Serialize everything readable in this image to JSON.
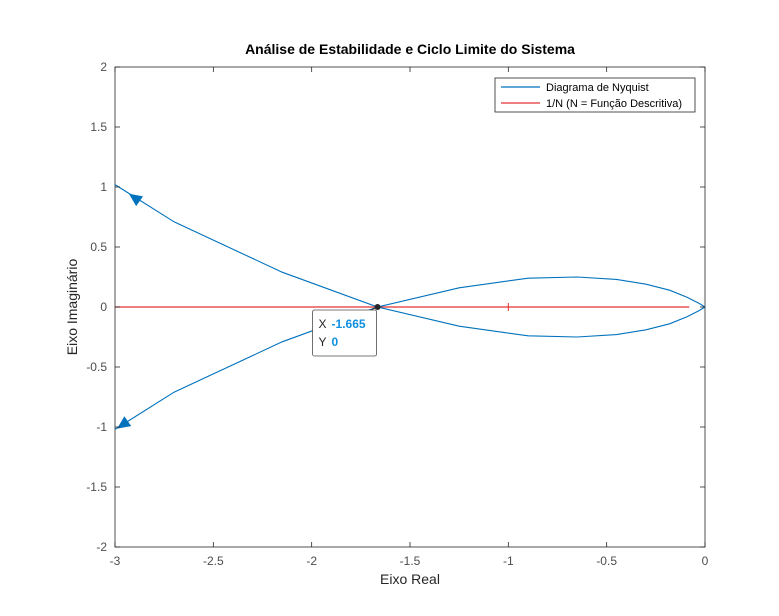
{
  "chart_data": {
    "type": "line",
    "title": "Análise de Estabilidade e Ciclo Limite do Sistema",
    "xlabel": "Eixo Real",
    "ylabel": "Eixo Imaginário",
    "xlim": [
      -3,
      0
    ],
    "ylim": [
      -2,
      2
    ],
    "xticks": [
      "-3",
      "-2.5",
      "-2",
      "-1.5",
      "-1",
      "-0.5",
      "0"
    ],
    "yticks": [
      "2",
      "1.5",
      "1",
      "0.5",
      "0",
      "-0.5",
      "-1",
      "-1.5",
      "-2"
    ],
    "grid": false,
    "box": true,
    "legend_location": "top-right",
    "series": [
      {
        "name": "Diagrama de Nyquist",
        "color": "#0072BD",
        "branches": [
          {
            "x": [
              -3.0,
              -2.7,
              -2.15,
              -1.665,
              -1.25,
              -0.9,
              -0.65,
              -0.45,
              -0.3,
              -0.18,
              -0.09,
              -0.03,
              0.0
            ],
            "y": [
              1.02,
              0.71,
              0.29,
              0.0,
              0.16,
              0.24,
              0.25,
              0.23,
              0.19,
              0.14,
              0.08,
              0.03,
              0.0
            ]
          },
          {
            "x": [
              -3.0,
              -2.7,
              -2.15,
              -1.665,
              -1.25,
              -0.9,
              -0.65,
              -0.45,
              -0.3,
              -0.18,
              -0.09,
              -0.03,
              0.0
            ],
            "y": [
              -1.02,
              -0.71,
              -0.29,
              0.0,
              -0.16,
              -0.24,
              -0.25,
              -0.23,
              -0.19,
              -0.14,
              -0.08,
              -0.03,
              0.0
            ]
          }
        ],
        "arrows": [
          {
            "x": -2.9,
            "y": 0.91,
            "direction": "up-left"
          },
          {
            "x": -2.96,
            "y": -0.98,
            "direction": "down-left"
          }
        ]
      },
      {
        "name": "1/N (N = Função Descritiva)",
        "color": "#D95319",
        "line_color": "#E53030",
        "x": [
          -3.0,
          -0.08
        ],
        "y": [
          0,
          0
        ]
      }
    ],
    "markers": [
      {
        "type": "plus",
        "x": -1.0,
        "y": 0.0,
        "color": "#E53030"
      }
    ],
    "datatip": {
      "x": -1.665,
      "y": 0,
      "x_key": "X",
      "y_key": "Y",
      "x_value": "-1.665",
      "y_value": "0",
      "value_color": "#0F8FE0"
    }
  }
}
